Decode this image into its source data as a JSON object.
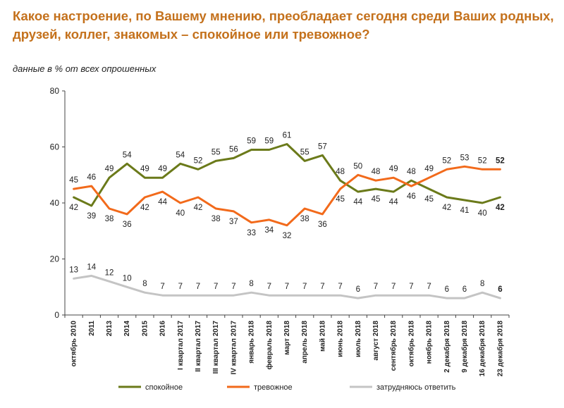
{
  "title": "Какое настроение, по Вашему мнению, преобладает сегодня среди Ваших родных, друзей, коллег, знакомых – спокойное или тревожное?",
  "subtitle": "данные в % от всех опрошенных",
  "chart_data": {
    "type": "line",
    "ylim": [
      0,
      80
    ],
    "yticks": [
      0,
      20,
      40,
      60,
      80
    ],
    "legend_position": "bottom",
    "x": [
      "октябрь 2010",
      "2011",
      "2013",
      "2014",
      "2015",
      "2016",
      "I квартал 2017",
      "II квартал 2017",
      "III квартал 2017",
      "IV квартал 2017",
      "январь 2018",
      "февраль 2018",
      "март 2018",
      "апрель 2018",
      "май 2018",
      "июнь 2018",
      "июль 2018",
      "август 2018",
      "сентябрь 2018",
      "октябрь 2018",
      "ноябрь 2018",
      "2 декабря 2018",
      "9 декабря 2018",
      "16 декабря 2018",
      "23 декабря 2018"
    ],
    "series": [
      {
        "name": "спокойное",
        "color": "#6b7a1a",
        "values": [
          42,
          39,
          49,
          54,
          49,
          49,
          54,
          52,
          55,
          56,
          59,
          59,
          61,
          55,
          57,
          48,
          44,
          45,
          44,
          48,
          45,
          42,
          41,
          40,
          42
        ]
      },
      {
        "name": "тревожное",
        "color": "#f26a1b",
        "values": [
          45,
          46,
          38,
          36,
          42,
          44,
          40,
          42,
          38,
          37,
          33,
          34,
          32,
          38,
          36,
          45,
          50,
          48,
          49,
          46,
          49,
          52,
          53,
          52,
          52
        ]
      },
      {
        "name": "затрудняюсь ответить",
        "color": "#c4c4c4",
        "values": [
          13,
          14,
          12,
          10,
          8,
          7,
          7,
          7,
          7,
          7,
          8,
          7,
          7,
          7,
          7,
          7,
          6,
          7,
          7,
          7,
          7,
          6,
          6,
          8,
          6
        ]
      }
    ]
  }
}
